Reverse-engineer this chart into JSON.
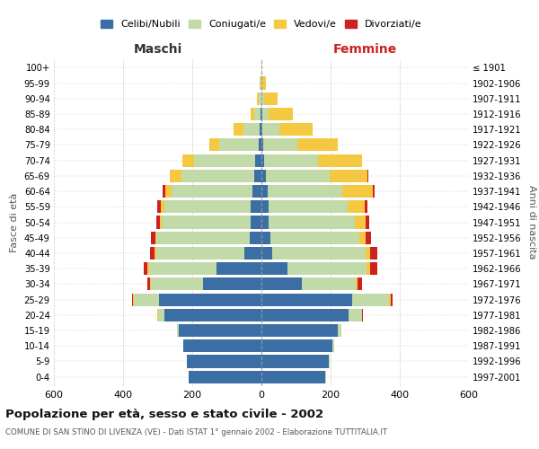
{
  "age_groups": [
    "0-4",
    "5-9",
    "10-14",
    "15-19",
    "20-24",
    "25-29",
    "30-34",
    "35-39",
    "40-44",
    "45-49",
    "50-54",
    "55-59",
    "60-64",
    "65-69",
    "70-74",
    "75-79",
    "80-84",
    "85-89",
    "90-94",
    "95-99",
    "100+"
  ],
  "birth_years": [
    "1997-2001",
    "1992-1996",
    "1987-1991",
    "1982-1986",
    "1977-1981",
    "1972-1976",
    "1967-1971",
    "1962-1966",
    "1957-1961",
    "1952-1956",
    "1947-1951",
    "1942-1946",
    "1937-1941",
    "1932-1936",
    "1927-1931",
    "1922-1926",
    "1917-1921",
    "1912-1916",
    "1907-1911",
    "1902-1906",
    "≤ 1901"
  ],
  "males": {
    "celibi": [
      210,
      215,
      225,
      240,
      280,
      295,
      170,
      130,
      50,
      35,
      30,
      32,
      25,
      22,
      18,
      8,
      4,
      2,
      1,
      0,
      0
    ],
    "coniugati": [
      1,
      1,
      2,
      5,
      20,
      75,
      150,
      195,
      255,
      268,
      258,
      248,
      235,
      210,
      178,
      115,
      48,
      18,
      8,
      2,
      0
    ],
    "vedovi": [
      0,
      0,
      0,
      0,
      1,
      2,
      2,
      4,
      4,
      4,
      5,
      12,
      18,
      32,
      32,
      28,
      28,
      12,
      4,
      2,
      0
    ],
    "divorziati": [
      0,
      0,
      0,
      0,
      1,
      3,
      8,
      10,
      14,
      12,
      10,
      8,
      8,
      2,
      0,
      0,
      0,
      0,
      0,
      0,
      0
    ]
  },
  "females": {
    "nubili": [
      185,
      195,
      205,
      220,
      252,
      262,
      118,
      75,
      32,
      26,
      22,
      22,
      18,
      12,
      8,
      6,
      3,
      2,
      1,
      0,
      0
    ],
    "coniugate": [
      1,
      2,
      5,
      10,
      38,
      108,
      155,
      230,
      268,
      258,
      248,
      228,
      215,
      186,
      155,
      98,
      48,
      18,
      6,
      2,
      0
    ],
    "vedove": [
      0,
      0,
      0,
      1,
      2,
      3,
      5,
      10,
      14,
      18,
      32,
      48,
      88,
      108,
      128,
      118,
      98,
      72,
      40,
      12,
      1
    ],
    "divorziate": [
      0,
      0,
      0,
      1,
      2,
      5,
      14,
      20,
      20,
      14,
      10,
      8,
      5,
      2,
      0,
      0,
      0,
      0,
      0,
      0,
      0
    ]
  },
  "colors": {
    "celibi": "#3a6ea5",
    "coniugati": "#c2d9a8",
    "vedovi": "#f5c842",
    "divorziati": "#cc2222"
  },
  "title": "Popolazione per età, sesso e stato civile - 2002",
  "subtitle": "COMUNE DI SAN STINO DI LIVENZA (VE) - Dati ISTAT 1° gennaio 2002 - Elaborazione TUTTITALIA.IT",
  "xlim": 600,
  "bg_color": "#ffffff",
  "grid_color": "#cccccc"
}
